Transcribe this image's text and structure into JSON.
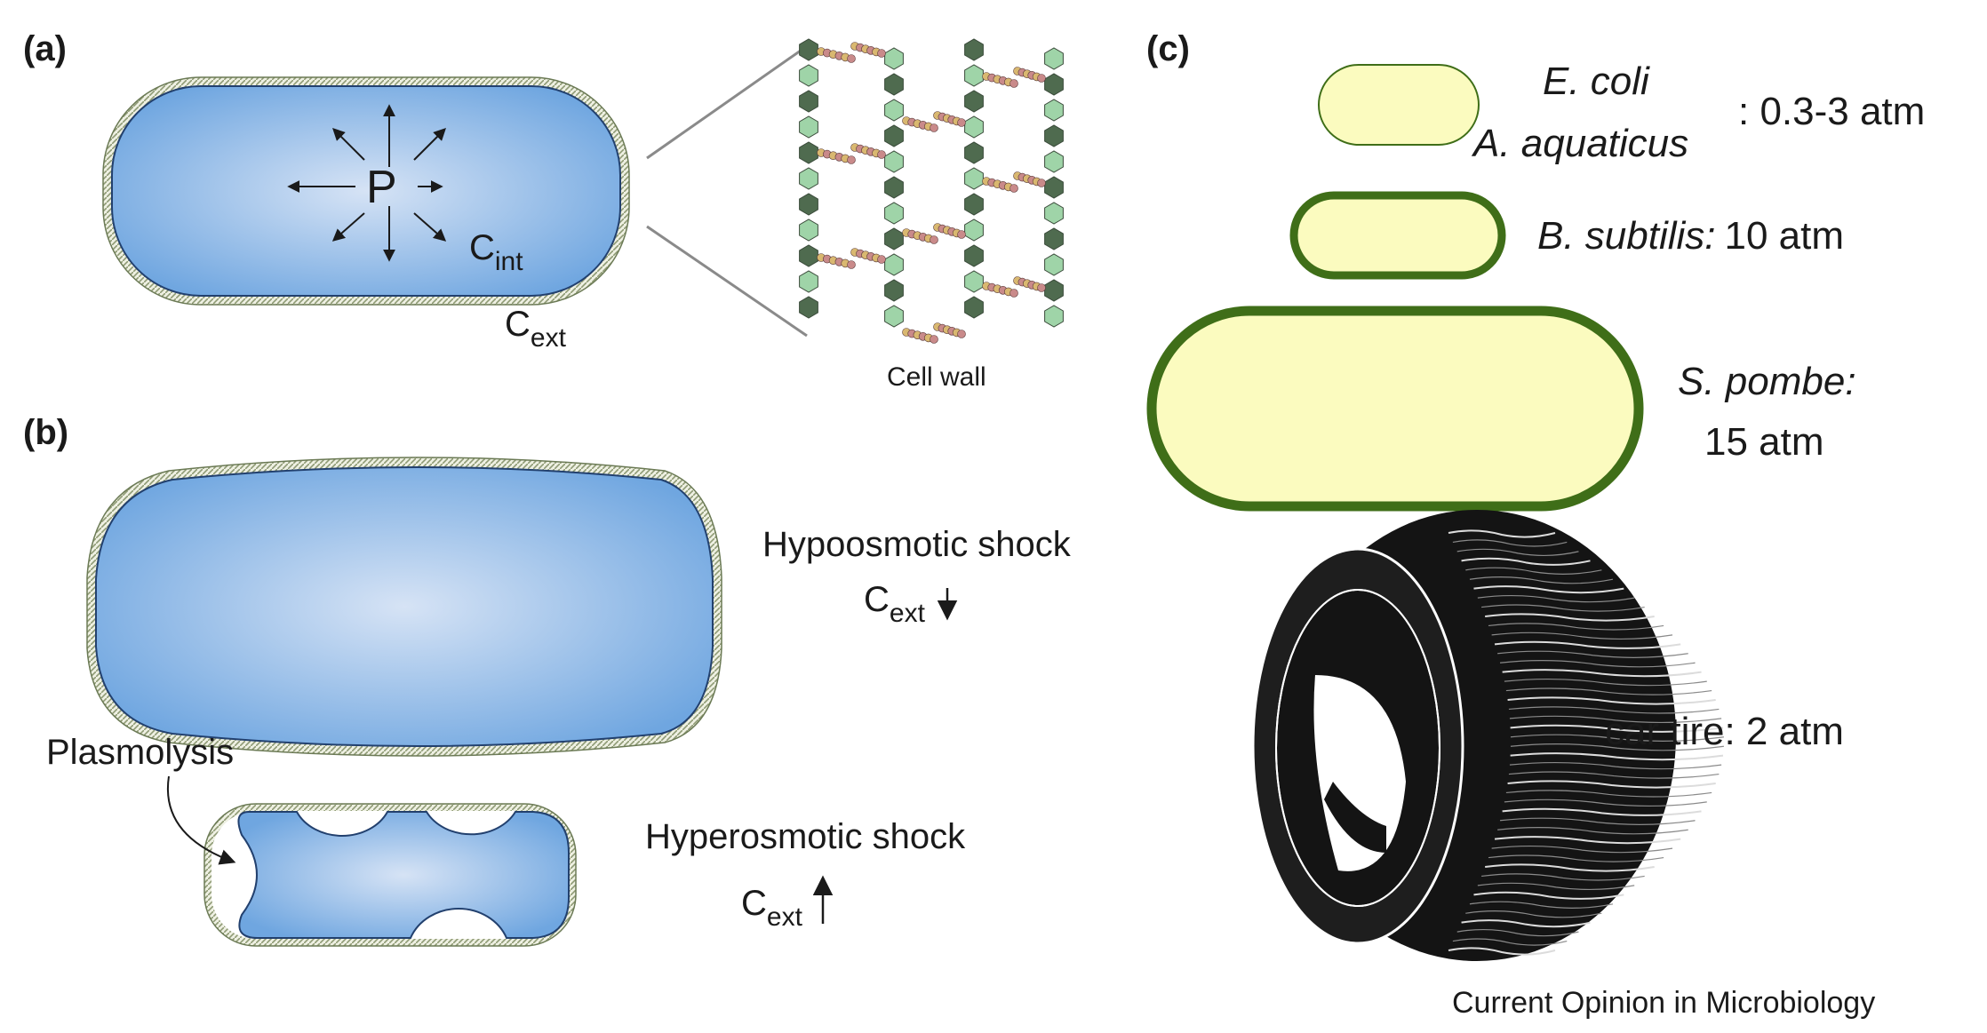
{
  "panels": {
    "a": {
      "label": "(a)"
    },
    "b": {
      "label": "(b)"
    },
    "c": {
      "label": "(c)"
    }
  },
  "panel_a": {
    "pressure_symbol": "P",
    "c_int": {
      "base": "C",
      "sub": "int"
    },
    "c_ext": {
      "base": "C",
      "sub": "ext"
    },
    "cell_wall_label": "Cell wall"
  },
  "panel_b": {
    "hypo": {
      "label": "Hypoosmotic shock",
      "base": "C",
      "sub": "ext",
      "direction": "down"
    },
    "hyper": {
      "label": "Hyperosmotic shock",
      "base": "C",
      "sub": "ext",
      "direction": "up"
    },
    "plasmolysis_label": "Plasmolysis"
  },
  "panel_c": {
    "ecoli": {
      "species": [
        "E. coli",
        "A. aquaticus"
      ],
      "pressure": ": 0.3-3 atm"
    },
    "bsub": {
      "species": "B. subtilis:",
      "pressure": "10 atm"
    },
    "spombe": {
      "species": "S. pombe:",
      "pressure": "15 atm"
    },
    "tire": {
      "label": "car tire: 2 atm"
    }
  },
  "credit": "Current Opinion in Microbiology",
  "colors": {
    "cytoplasm_light": "#d6e3f5",
    "cytoplasm_dark": "#6fa6e0",
    "cell_outline": "#22406e",
    "wall_stripe": "#9eab86",
    "wall_green_light": "#9fd4a8",
    "wall_green_dark": "#4f6b4f",
    "crosslink_pink": "#c98a8a",
    "crosslink_tan": "#d9b870",
    "yellow_cell": "#fbfbbf",
    "green_wall": "#3f6e18",
    "tire_black": "#141414"
  }
}
